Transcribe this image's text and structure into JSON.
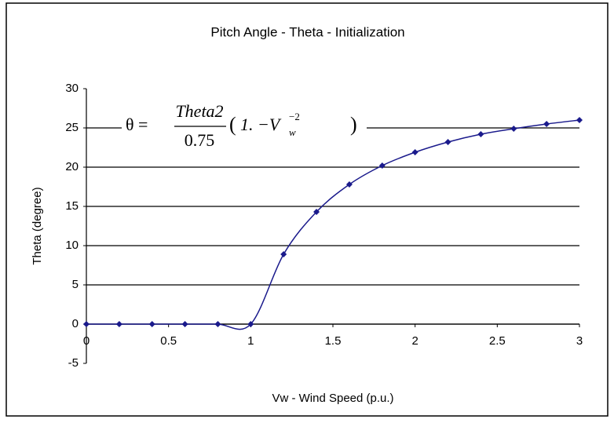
{
  "chart_data": {
    "type": "line",
    "title": "Pitch Angle - Theta - Initialization",
    "x_label": "Vw - Wind  Speed (p.u.)",
    "y_label": "Theta (degree)",
    "annotation": {
      "lhs": "θ =",
      "numerator": "Theta2",
      "denominator": "0.75",
      "open": "(",
      "body": "1. −V",
      "subscript": "w",
      "superscript": "−2",
      "close": ")"
    },
    "x": [
      0,
      0.2,
      0.4,
      0.6,
      0.8,
      1.0,
      1.2,
      1.4,
      1.6,
      1.8,
      2.0,
      2.2,
      2.4,
      2.6,
      2.8,
      3.0
    ],
    "series": [
      {
        "name": "Theta",
        "color": "#1a1a8c",
        "values": [
          0,
          0,
          0,
          0,
          0,
          0,
          8.9,
          14.3,
          17.8,
          20.2,
          21.9,
          23.2,
          24.2,
          24.9,
          25.5,
          26.0
        ]
      }
    ],
    "xlim": [
      0,
      3
    ],
    "xticks": [
      0,
      0.5,
      1,
      1.5,
      2,
      2.5,
      3
    ],
    "ylim": [
      -5,
      30
    ],
    "yticks": [
      -5,
      0,
      5,
      10,
      15,
      20,
      25,
      30
    ],
    "grid": true
  }
}
